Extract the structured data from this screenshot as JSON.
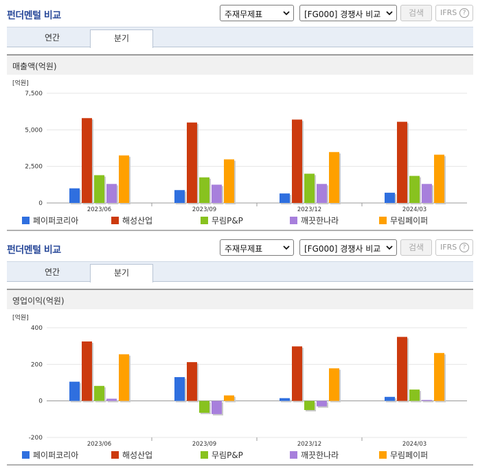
{
  "panels": [
    {
      "title": "펀더멘털 비교",
      "select1": "주재무제표",
      "select2": "[FG000] 경쟁사 비교",
      "search_label": "검색",
      "ifrs_label": "IFRS",
      "help_label": "?",
      "tabs": [
        "연간",
        "분기"
      ],
      "active_tab": "분기",
      "section_title": "매출액(억원)",
      "legend": [
        "페이퍼코리아",
        "해성산업",
        "무림P&P",
        "깨끗한나라",
        "무림페이퍼"
      ]
    },
    {
      "title": "펀더멘털 비교",
      "select1": "주재무제표",
      "select2": "[FG000] 경쟁사 비교",
      "search_label": "검색",
      "ifrs_label": "IFRS",
      "help_label": "?",
      "tabs": [
        "연간",
        "분기"
      ],
      "active_tab": "분기",
      "section_title": "영업이익(억원)",
      "legend": [
        "페이퍼코리아",
        "해성산업",
        "무림P&P",
        "깨끗한나라",
        "무림페이퍼"
      ]
    }
  ],
  "colors": [
    "#2f6fdf",
    "#cc3a0e",
    "#88c21f",
    "#a77fdc",
    "#ffa000"
  ],
  "chart_data": [
    {
      "type": "bar",
      "title": "매출액(억원)",
      "unit_label": "[억원]",
      "categories": [
        "2023/06",
        "2023/09",
        "2023/12",
        "2024/03"
      ],
      "yticks": [
        "7,500",
        "5,000",
        "2,500",
        "0"
      ],
      "ytick_values": [
        7500,
        5000,
        2500,
        0
      ],
      "ylim": [
        0,
        7500
      ],
      "legend_position": "bottom",
      "grid": true,
      "series": [
        {
          "name": "페이퍼코리아",
          "values": [
            1000,
            880,
            650,
            700
          ]
        },
        {
          "name": "해성산업",
          "values": [
            5800,
            5500,
            5700,
            5550
          ]
        },
        {
          "name": "무림P&P",
          "values": [
            1900,
            1750,
            2000,
            1850
          ]
        },
        {
          "name": "깨끗한나라",
          "values": [
            1300,
            1250,
            1300,
            1300
          ]
        },
        {
          "name": "무림페이퍼",
          "values": [
            3250,
            2980,
            3480,
            3300
          ]
        }
      ]
    },
    {
      "type": "bar",
      "title": "영업이익(억원)",
      "unit_label": "[억원]",
      "categories": [
        "2023/06",
        "2023/09",
        "2023/12",
        "2024/03"
      ],
      "yticks": [
        "400",
        "200",
        "0",
        "-200"
      ],
      "ytick_values": [
        400,
        200,
        0,
        -200
      ],
      "ylim": [
        -200,
        400
      ],
      "legend_position": "bottom",
      "grid": true,
      "series": [
        {
          "name": "페이퍼코리아",
          "values": [
            105,
            130,
            15,
            22
          ]
        },
        {
          "name": "해성산업",
          "values": [
            325,
            212,
            298,
            350
          ]
        },
        {
          "name": "무림P&P",
          "values": [
            82,
            -65,
            -50,
            62
          ]
        },
        {
          "name": "깨끗한나라",
          "values": [
            12,
            -72,
            -30,
            5
          ]
        },
        {
          "name": "무림페이퍼",
          "values": [
            255,
            30,
            178,
            262
          ]
        }
      ]
    }
  ]
}
